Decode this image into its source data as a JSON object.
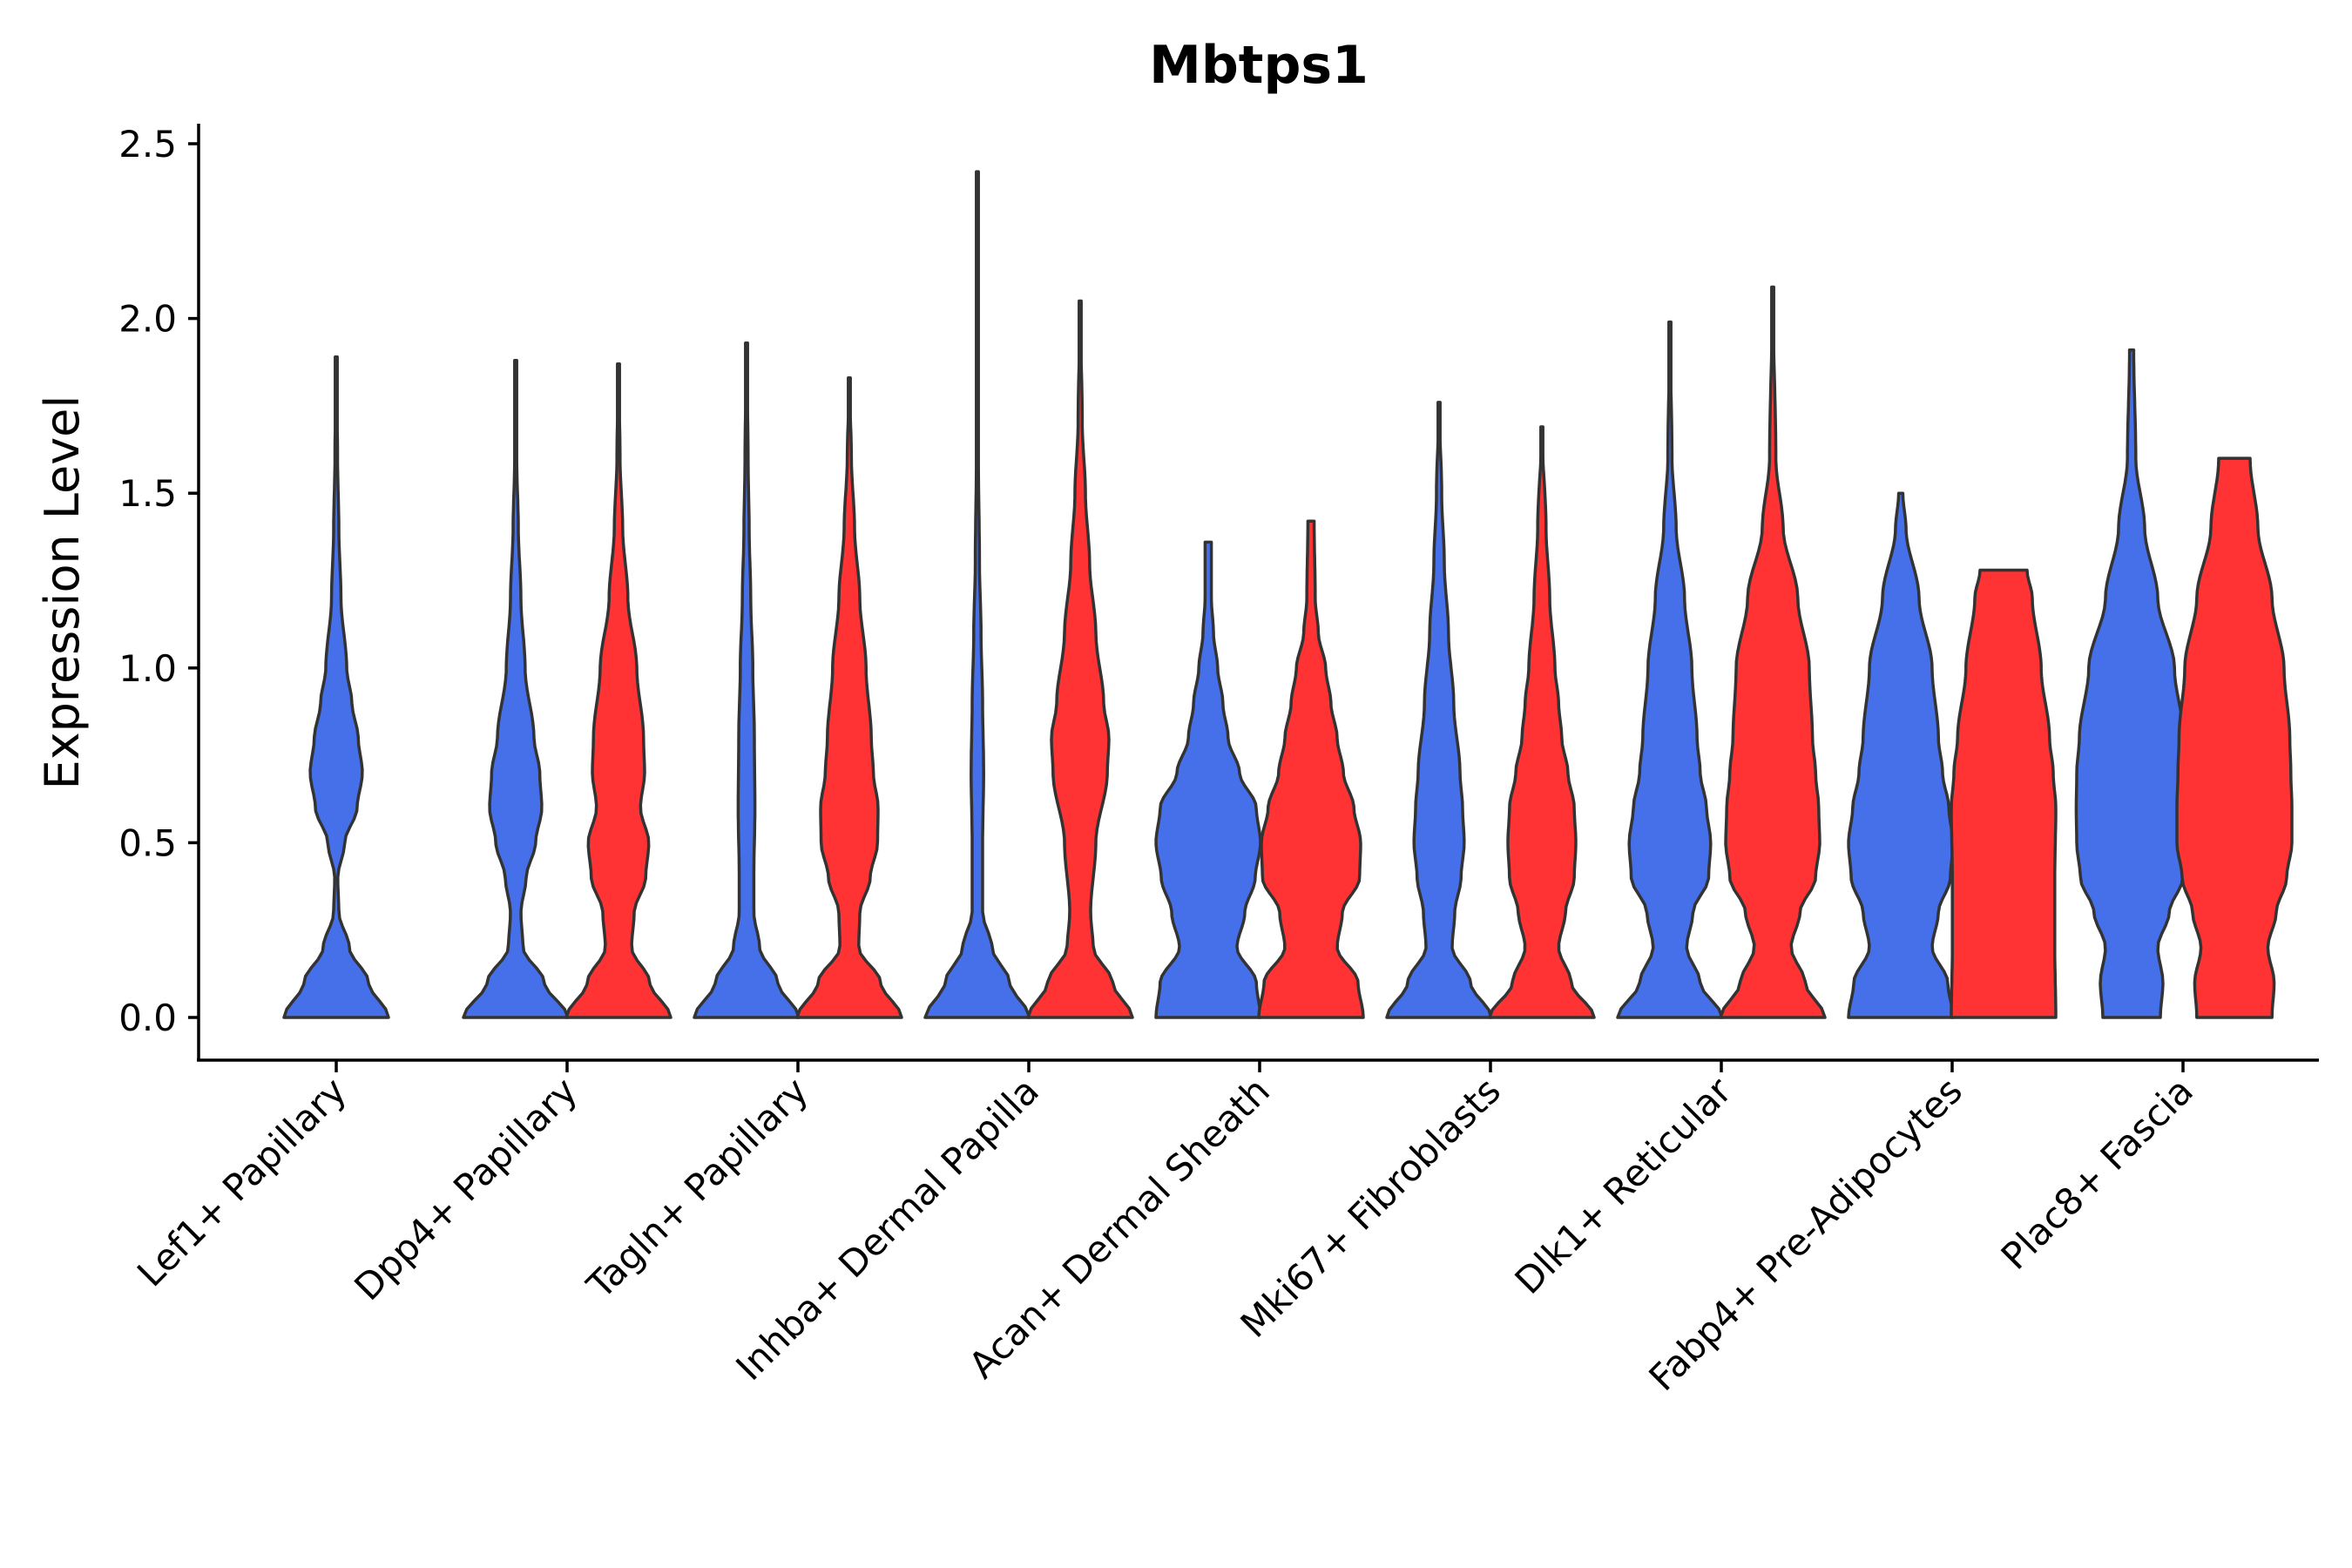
{
  "chart_data": {
    "type": "violin",
    "title": "Mbtps1",
    "xlabel": "",
    "ylabel": "Expression Level",
    "ylim": [
      -0.12,
      2.55
    ],
    "yticks": [
      "0.0",
      "0.5",
      "1.0",
      "1.5",
      "2.0",
      "2.5"
    ],
    "series_colors": [
      "#4570EA",
      "#FF3333"
    ],
    "categories": [
      "Lef1+ Papillary",
      "Dpp4+ Papillary",
      "Tagln+ Papillary",
      "Inhba+ Dermal Papilla",
      "Acan+ Dermal Sheath",
      "Mki67+ Fibroblasts",
      "Dlk1+ Reticular",
      "Fabp4+ Pre-Adipocytes",
      "Plac8+ Fascia"
    ],
    "violins": [
      {
        "category": "Lef1+ Papillary",
        "series": 0,
        "max": 1.89,
        "profile": [
          [
            0,
            1.0
          ],
          [
            0.1,
            0.62
          ],
          [
            0.2,
            0.25
          ],
          [
            0.3,
            0.05
          ],
          [
            0.4,
            0.03
          ],
          [
            0.5,
            0.16
          ],
          [
            0.6,
            0.4
          ],
          [
            0.7,
            0.5
          ],
          [
            0.8,
            0.42
          ],
          [
            0.9,
            0.3
          ],
          [
            1.0,
            0.2
          ],
          [
            1.2,
            0.09
          ],
          [
            1.4,
            0.05
          ],
          [
            1.6,
            0.025
          ],
          [
            1.89,
            0.0
          ]
        ]
      },
      {
        "category": "Dpp4+ Papillary",
        "series": 0,
        "max": 1.88,
        "profile": [
          [
            0,
            1.0
          ],
          [
            0.1,
            0.55
          ],
          [
            0.2,
            0.14
          ],
          [
            0.3,
            0.1
          ],
          [
            0.4,
            0.2
          ],
          [
            0.5,
            0.38
          ],
          [
            0.6,
            0.5
          ],
          [
            0.7,
            0.46
          ],
          [
            0.8,
            0.35
          ],
          [
            1.0,
            0.18
          ],
          [
            1.2,
            0.1
          ],
          [
            1.4,
            0.05
          ],
          [
            1.6,
            0.02
          ],
          [
            1.88,
            0.0
          ]
        ]
      },
      {
        "category": "Dpp4+ Papillary",
        "series": 1,
        "max": 1.87,
        "profile": [
          [
            0,
            1.0
          ],
          [
            0.1,
            0.6
          ],
          [
            0.2,
            0.25
          ],
          [
            0.3,
            0.3
          ],
          [
            0.4,
            0.52
          ],
          [
            0.5,
            0.58
          ],
          [
            0.6,
            0.42
          ],
          [
            0.7,
            0.5
          ],
          [
            0.8,
            0.48
          ],
          [
            1.0,
            0.35
          ],
          [
            1.2,
            0.18
          ],
          [
            1.4,
            0.08
          ],
          [
            1.6,
            0.03
          ],
          [
            1.87,
            0.0
          ]
        ]
      },
      {
        "category": "Tagln+ Papillary",
        "series": 0,
        "max": 1.93,
        "profile": [
          [
            0,
            1.0
          ],
          [
            0.1,
            0.6
          ],
          [
            0.2,
            0.25
          ],
          [
            0.3,
            0.14
          ],
          [
            0.4,
            0.14
          ],
          [
            0.6,
            0.16
          ],
          [
            0.8,
            0.15
          ],
          [
            1.0,
            0.12
          ],
          [
            1.2,
            0.08
          ],
          [
            1.4,
            0.05
          ],
          [
            1.6,
            0.03
          ],
          [
            1.93,
            0.0
          ]
        ]
      },
      {
        "category": "Tagln+ Papillary",
        "series": 1,
        "max": 1.83,
        "profile": [
          [
            0,
            1.0
          ],
          [
            0.1,
            0.6
          ],
          [
            0.2,
            0.18
          ],
          [
            0.3,
            0.2
          ],
          [
            0.4,
            0.4
          ],
          [
            0.5,
            0.54
          ],
          [
            0.6,
            0.55
          ],
          [
            0.7,
            0.46
          ],
          [
            0.8,
            0.42
          ],
          [
            1.0,
            0.32
          ],
          [
            1.2,
            0.2
          ],
          [
            1.4,
            0.1
          ],
          [
            1.6,
            0.04
          ],
          [
            1.83,
            0.0
          ]
        ]
      },
      {
        "category": "Inhba+ Dermal Papilla",
        "series": 0,
        "max": 2.42,
        "profile": [
          [
            0,
            1.0
          ],
          [
            0.1,
            0.62
          ],
          [
            0.2,
            0.28
          ],
          [
            0.3,
            0.1
          ],
          [
            0.5,
            0.1
          ],
          [
            0.7,
            0.12
          ],
          [
            0.9,
            0.1
          ],
          [
            1.1,
            0.07
          ],
          [
            1.3,
            0.04
          ],
          [
            1.6,
            0.02
          ],
          [
            2.0,
            0.01
          ],
          [
            2.42,
            0.0
          ]
        ]
      },
      {
        "category": "Inhba+ Dermal Papilla",
        "series": 1,
        "max": 2.05,
        "profile": [
          [
            0,
            1.0
          ],
          [
            0.1,
            0.62
          ],
          [
            0.2,
            0.25
          ],
          [
            0.3,
            0.2
          ],
          [
            0.5,
            0.3
          ],
          [
            0.7,
            0.52
          ],
          [
            0.8,
            0.55
          ],
          [
            0.9,
            0.45
          ],
          [
            1.1,
            0.3
          ],
          [
            1.3,
            0.18
          ],
          [
            1.5,
            0.1
          ],
          [
            1.7,
            0.04
          ],
          [
            2.05,
            0.0
          ]
        ]
      },
      {
        "category": "Acan+ Dermal Sheath",
        "series": 0,
        "max": 1.36,
        "profile": [
          [
            0,
            1.0
          ],
          [
            0.1,
            0.92
          ],
          [
            0.2,
            0.55
          ],
          [
            0.3,
            0.7
          ],
          [
            0.4,
            0.9
          ],
          [
            0.5,
            1.0
          ],
          [
            0.6,
            0.92
          ],
          [
            0.7,
            0.6
          ],
          [
            0.8,
            0.38
          ],
          [
            0.9,
            0.28
          ],
          [
            1.0,
            0.18
          ],
          [
            1.1,
            0.1
          ],
          [
            1.2,
            0.06
          ],
          [
            1.36,
            0.06
          ]
        ]
      },
      {
        "category": "Acan+ Dermal Sheath",
        "series": 1,
        "max": 1.42,
        "profile": [
          [
            0,
            1.0
          ],
          [
            0.1,
            0.9
          ],
          [
            0.2,
            0.5
          ],
          [
            0.3,
            0.6
          ],
          [
            0.4,
            0.93
          ],
          [
            0.5,
            0.95
          ],
          [
            0.6,
            0.82
          ],
          [
            0.7,
            0.62
          ],
          [
            0.8,
            0.5
          ],
          [
            0.9,
            0.38
          ],
          [
            1.0,
            0.28
          ],
          [
            1.1,
            0.14
          ],
          [
            1.2,
            0.08
          ],
          [
            1.42,
            0.06
          ]
        ]
      },
      {
        "category": "Mki67+ Fibroblasts",
        "series": 0,
        "max": 1.76,
        "profile": [
          [
            0,
            1.0
          ],
          [
            0.1,
            0.6
          ],
          [
            0.2,
            0.25
          ],
          [
            0.3,
            0.3
          ],
          [
            0.4,
            0.42
          ],
          [
            0.5,
            0.48
          ],
          [
            0.6,
            0.45
          ],
          [
            0.7,
            0.4
          ],
          [
            0.9,
            0.28
          ],
          [
            1.1,
            0.18
          ],
          [
            1.3,
            0.1
          ],
          [
            1.5,
            0.05
          ],
          [
            1.76,
            0.0
          ]
        ]
      },
      {
        "category": "Mki67+ Fibroblasts",
        "series": 1,
        "max": 1.69,
        "profile": [
          [
            0,
            1.0
          ],
          [
            0.1,
            0.56
          ],
          [
            0.2,
            0.32
          ],
          [
            0.3,
            0.45
          ],
          [
            0.4,
            0.62
          ],
          [
            0.5,
            0.65
          ],
          [
            0.6,
            0.62
          ],
          [
            0.7,
            0.5
          ],
          [
            0.8,
            0.38
          ],
          [
            0.9,
            0.32
          ],
          [
            1.0,
            0.25
          ],
          [
            1.2,
            0.15
          ],
          [
            1.4,
            0.08
          ],
          [
            1.69,
            0.0
          ]
        ]
      },
      {
        "category": "Dlk1+ Reticular",
        "series": 0,
        "max": 1.99,
        "profile": [
          [
            0,
            1.0
          ],
          [
            0.1,
            0.58
          ],
          [
            0.2,
            0.32
          ],
          [
            0.3,
            0.44
          ],
          [
            0.4,
            0.74
          ],
          [
            0.5,
            0.78
          ],
          [
            0.6,
            0.7
          ],
          [
            0.7,
            0.58
          ],
          [
            0.8,
            0.52
          ],
          [
            1.0,
            0.42
          ],
          [
            1.2,
            0.28
          ],
          [
            1.4,
            0.12
          ],
          [
            1.6,
            0.04
          ],
          [
            1.99,
            0.0
          ]
        ]
      },
      {
        "category": "Dlk1+ Reticular",
        "series": 1,
        "max": 2.09,
        "profile": [
          [
            0,
            1.0
          ],
          [
            0.1,
            0.62
          ],
          [
            0.2,
            0.35
          ],
          [
            0.3,
            0.52
          ],
          [
            0.4,
            0.82
          ],
          [
            0.5,
            0.9
          ],
          [
            0.6,
            0.88
          ],
          [
            0.7,
            0.82
          ],
          [
            0.8,
            0.76
          ],
          [
            1.0,
            0.7
          ],
          [
            1.2,
            0.48
          ],
          [
            1.4,
            0.2
          ],
          [
            1.6,
            0.06
          ],
          [
            2.09,
            0.0
          ]
        ]
      },
      {
        "category": "Fabp4+ Pre-Adipocytes",
        "series": 0,
        "max": 1.5,
        "profile": [
          [
            0,
            1.0
          ],
          [
            0.1,
            0.9
          ],
          [
            0.2,
            0.6
          ],
          [
            0.3,
            0.72
          ],
          [
            0.4,
            0.95
          ],
          [
            0.5,
            1.0
          ],
          [
            0.6,
            0.92
          ],
          [
            0.7,
            0.8
          ],
          [
            0.8,
            0.72
          ],
          [
            1.0,
            0.6
          ],
          [
            1.2,
            0.35
          ],
          [
            1.4,
            0.1
          ],
          [
            1.5,
            0.04
          ]
        ]
      },
      {
        "category": "Fabp4+ Pre-Adipocytes",
        "series": 1,
        "max": 1.28,
        "profile": [
          [
            0,
            1.0
          ],
          [
            0.2,
            0.98
          ],
          [
            0.4,
            0.98
          ],
          [
            0.6,
            1.0
          ],
          [
            0.7,
            0.95
          ],
          [
            0.8,
            0.88
          ],
          [
            1.0,
            0.72
          ],
          [
            1.2,
            0.55
          ],
          [
            1.28,
            0.45
          ]
        ]
      },
      {
        "category": "Plac8+ Fascia",
        "series": 0,
        "max": 1.91,
        "profile": [
          [
            0,
            0.55
          ],
          [
            0.1,
            0.6
          ],
          [
            0.2,
            0.5
          ],
          [
            0.3,
            0.72
          ],
          [
            0.4,
            0.98
          ],
          [
            0.5,
            1.05
          ],
          [
            0.6,
            1.06
          ],
          [
            0.7,
            1.05
          ],
          [
            0.8,
            1.0
          ],
          [
            1.0,
            0.82
          ],
          [
            1.2,
            0.5
          ],
          [
            1.4,
            0.25
          ],
          [
            1.6,
            0.08
          ],
          [
            1.91,
            0.04
          ]
        ]
      },
      {
        "category": "Plac8+ Fascia",
        "series": 1,
        "max": 1.6,
        "profile": [
          [
            0,
            0.72
          ],
          [
            0.1,
            0.76
          ],
          [
            0.2,
            0.64
          ],
          [
            0.3,
            0.8
          ],
          [
            0.4,
            1.0
          ],
          [
            0.5,
            1.1
          ],
          [
            0.6,
            1.1
          ],
          [
            0.7,
            1.08
          ],
          [
            0.8,
            1.06
          ],
          [
            1.0,
            0.95
          ],
          [
            1.2,
            0.72
          ],
          [
            1.4,
            0.45
          ],
          [
            1.6,
            0.3
          ]
        ]
      }
    ]
  }
}
